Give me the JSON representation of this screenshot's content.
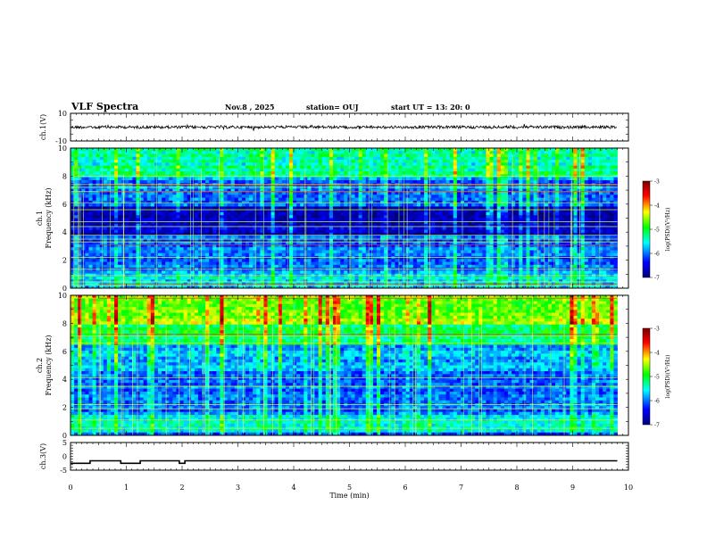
{
  "header": {
    "title": "VLF Spectra",
    "date": "Nov.8  , 2025",
    "station": "station= OUJ",
    "start": "start  UT  =   13: 20: 0"
  },
  "colors": {
    "colormap": [
      "#00007a",
      "#0000ff",
      "#00ffff",
      "#00ff00",
      "#ffff00",
      "#ff0000",
      "#7a0000"
    ]
  },
  "chart_data": [
    {
      "type": "line",
      "name": "ch1-waveform",
      "ylabel": "ch.1(V)",
      "ylim": [
        -10,
        10
      ],
      "yticks": [
        "10",
        "-10"
      ],
      "xlim": [
        0,
        10
      ],
      "level": 0,
      "series": [
        {
          "name": "ch.1",
          "x": [
            0,
            9.8
          ],
          "values": [
            0,
            0
          ]
        }
      ]
    },
    {
      "type": "heatmap",
      "name": "ch1-spectrogram",
      "ylabel_top": "ch.1",
      "ylabel": "Frequency  (kHz)",
      "ylim": [
        0,
        10
      ],
      "yticks": [
        "0",
        "2",
        "4",
        "6",
        "8",
        "10"
      ],
      "xlim": [
        0,
        10
      ],
      "data_end": 9.8,
      "colorbar": {
        "label": "log(PSD)(V²/Hz)",
        "ticks": [
          "-3",
          "-4",
          "-5",
          "-6",
          "-7"
        ],
        "range": [
          -7,
          -3
        ]
      },
      "dark_band": [
        3.7,
        5.8
      ],
      "bright_lines": [
        0.2,
        0.45,
        0.9,
        1.35,
        2.2,
        3.3,
        3.5,
        3.8,
        4.4,
        4.75,
        5.6,
        6.1,
        6.9,
        7.2,
        7.4,
        8.0
      ],
      "red_lines": [
        0.3,
        3.1,
        6.9,
        7.35
      ]
    },
    {
      "type": "heatmap",
      "name": "ch2-spectrogram",
      "ylabel_top": "ch.2",
      "ylabel": "Frequency  (kHz)",
      "ylim": [
        0,
        10
      ],
      "yticks": [
        "0",
        "2",
        "4",
        "6",
        "8",
        "10"
      ],
      "xlim": [
        0,
        10
      ],
      "data_end": 9.8,
      "colorbar": {
        "label": "log(PSD)(V²/Hz)",
        "ticks": [
          "-3",
          "-4",
          "-5",
          "-6",
          "-7"
        ],
        "range": [
          -7,
          -3
        ]
      },
      "bright_lines": [
        0.5,
        1.1,
        1.9,
        2.2,
        3.5,
        4.1,
        6.6,
        7.1,
        9.8
      ],
      "red_lines": [
        7.2,
        9.8
      ]
    },
    {
      "type": "line",
      "name": "ch3-signal",
      "ylabel": "ch.3(V)",
      "ylim": [
        -5,
        5
      ],
      "yticks": [
        "5",
        "0",
        "-5"
      ],
      "xlim": [
        0,
        10
      ],
      "xlabel": "Time  (min)",
      "xticks": [
        "0",
        "1",
        "2",
        "3",
        "4",
        "5",
        "6",
        "7",
        "8",
        "9",
        "10"
      ],
      "series": [
        {
          "name": "ch.3",
          "x": [
            0,
            0.35,
            0.35,
            0.9,
            0.9,
            1.25,
            1.25,
            1.95,
            1.95,
            2.05,
            2.05,
            9.8
          ],
          "values": [
            -2.5,
            -2.5,
            -1.6,
            -1.6,
            -2.5,
            -2.5,
            -1.6,
            -1.6,
            -2.5,
            -2.5,
            -1.6,
            -1.6
          ]
        }
      ]
    }
  ]
}
